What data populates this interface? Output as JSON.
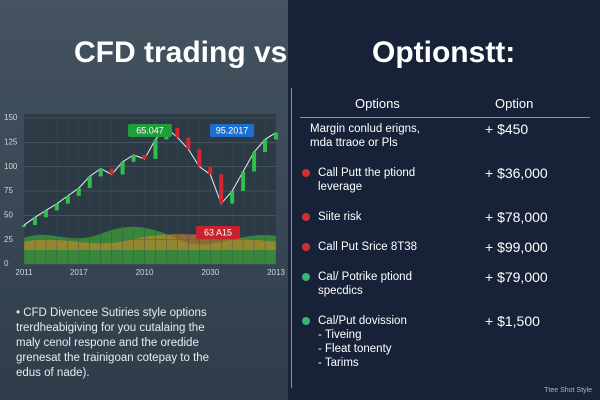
{
  "header": {
    "left_title": "CFD trading  vs",
    "right_title": "Optionstt:"
  },
  "chart_data": {
    "type": "line",
    "categories": [
      "2011",
      null,
      null,
      null,
      null,
      "2017",
      null,
      null,
      null,
      null,
      null,
      "2010",
      null,
      null,
      null,
      null,
      null,
      "2030",
      null,
      null,
      null,
      null,
      null,
      "2013"
    ],
    "values": [
      40,
      48,
      55,
      62,
      70,
      78,
      90,
      98,
      92,
      105,
      112,
      108,
      128,
      140,
      130,
      118,
      100,
      92,
      62,
      75,
      95,
      115,
      128,
      135
    ],
    "color": "#e8eef2",
    "ylim": [
      0,
      150
    ],
    "yticks": [
      0,
      25,
      50,
      75,
      100,
      125,
      150
    ],
    "grid": true,
    "annotations": [
      {
        "text": "65.047",
        "color": "#1f9e3a"
      },
      {
        "text": "95.2017",
        "color": "#1c6fd1"
      },
      {
        "text": "63 A15",
        "color": "#c8232c"
      }
    ]
  },
  "left_note": {
    "lines": [
      "CFD Divencee Sutiries style options",
      "trerdheabigiving for you cutalaing the",
      "maly cenol respone and the oredide",
      "grenesat the trainigoan cotepay to the",
      "edus of nade)."
    ]
  },
  "table": {
    "columns": [
      "Options",
      "Option"
    ],
    "rows": [
      {
        "label": [
          "Margin conlud erigns,",
          "mda ttraoe or Pls"
        ],
        "value": "+ $450",
        "bullet": null
      },
      {
        "label": [
          "Call Putt the ptiond",
          "leverage"
        ],
        "value": "+ $36,000",
        "bullet": "#d32f2f"
      },
      {
        "label": [
          "Siite risk"
        ],
        "value": "+ $78,000",
        "bullet": "#d32f2f"
      },
      {
        "label": [
          "Call Put Srice 8T38"
        ],
        "value": "+ $99,000",
        "bullet": "#d32f2f"
      },
      {
        "label": [
          "Cal/ Potrike ptiond",
          "specdics"
        ],
        "value": "+ $79,000",
        "bullet": "#3cb371"
      },
      {
        "label": [
          "Cal/Put dovission",
          "- Tiveing",
          "- Fleat tonenty",
          "- Tarims"
        ],
        "value": "+ $1,500",
        "bullet": "#3cb371"
      }
    ]
  },
  "footer": "Ttee Shot Style"
}
